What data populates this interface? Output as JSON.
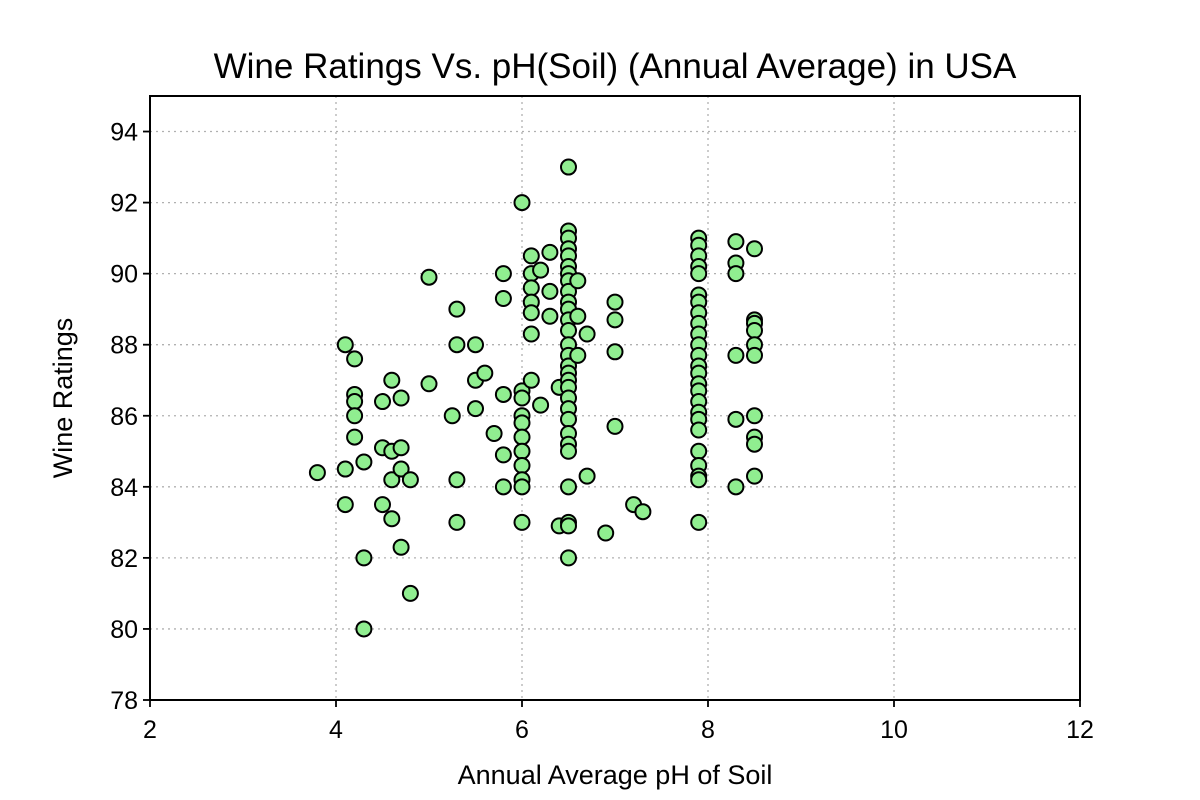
{
  "chart_data": {
    "type": "scatter",
    "title": "Wine Ratings Vs. pH(Soil) (Annual Average) in USA",
    "xlabel": "Annual Average pH of Soil",
    "ylabel": "Wine Ratings",
    "xlim": [
      2,
      12
    ],
    "ylim": [
      78,
      95
    ],
    "xticks": [
      "2",
      "4",
      "6",
      "8",
      "10",
      "12"
    ],
    "yticks": [
      "78",
      "80",
      "82",
      "84",
      "86",
      "88",
      "90",
      "92",
      "94"
    ],
    "grid": true,
    "legend": "none",
    "marker_color": "#90ee90",
    "marker_edge_color": "#000000",
    "points": [
      {
        "x": 3.8,
        "y": 84.4
      },
      {
        "x": 4.1,
        "y": 88.0
      },
      {
        "x": 4.1,
        "y": 84.5
      },
      {
        "x": 4.1,
        "y": 83.5
      },
      {
        "x": 4.2,
        "y": 87.6
      },
      {
        "x": 4.2,
        "y": 86.6
      },
      {
        "x": 4.2,
        "y": 86.4
      },
      {
        "x": 4.2,
        "y": 86.0
      },
      {
        "x": 4.2,
        "y": 85.4
      },
      {
        "x": 4.3,
        "y": 84.7
      },
      {
        "x": 4.3,
        "y": 82.0
      },
      {
        "x": 4.3,
        "y": 80.0
      },
      {
        "x": 4.5,
        "y": 86.4
      },
      {
        "x": 4.5,
        "y": 85.1
      },
      {
        "x": 4.5,
        "y": 83.5
      },
      {
        "x": 4.6,
        "y": 87.0
      },
      {
        "x": 4.6,
        "y": 85.0
      },
      {
        "x": 4.6,
        "y": 84.2
      },
      {
        "x": 4.6,
        "y": 83.1
      },
      {
        "x": 4.7,
        "y": 86.5
      },
      {
        "x": 4.7,
        "y": 85.1
      },
      {
        "x": 4.7,
        "y": 84.5
      },
      {
        "x": 4.7,
        "y": 82.3
      },
      {
        "x": 4.8,
        "y": 84.2
      },
      {
        "x": 4.8,
        "y": 81.0
      },
      {
        "x": 5.0,
        "y": 89.9
      },
      {
        "x": 5.0,
        "y": 86.9
      },
      {
        "x": 5.3,
        "y": 89.0
      },
      {
        "x": 5.3,
        "y": 88.0
      },
      {
        "x": 5.25,
        "y": 86.0
      },
      {
        "x": 5.3,
        "y": 84.2
      },
      {
        "x": 5.3,
        "y": 83.0
      },
      {
        "x": 5.5,
        "y": 88.0
      },
      {
        "x": 5.5,
        "y": 87.0
      },
      {
        "x": 5.5,
        "y": 86.2
      },
      {
        "x": 5.6,
        "y": 87.2
      },
      {
        "x": 5.7,
        "y": 85.5
      },
      {
        "x": 5.8,
        "y": 90.0
      },
      {
        "x": 5.8,
        "y": 89.3
      },
      {
        "x": 5.8,
        "y": 86.6
      },
      {
        "x": 5.8,
        "y": 84.9
      },
      {
        "x": 5.8,
        "y": 84.0
      },
      {
        "x": 6.0,
        "y": 92.0
      },
      {
        "x": 6.0,
        "y": 86.7
      },
      {
        "x": 6.0,
        "y": 86.5
      },
      {
        "x": 6.0,
        "y": 86.0
      },
      {
        "x": 6.0,
        "y": 85.8
      },
      {
        "x": 6.0,
        "y": 85.4
      },
      {
        "x": 6.0,
        "y": 85.0
      },
      {
        "x": 6.0,
        "y": 84.6
      },
      {
        "x": 6.0,
        "y": 84.2
      },
      {
        "x": 6.0,
        "y": 84.0
      },
      {
        "x": 6.0,
        "y": 83.0
      },
      {
        "x": 6.1,
        "y": 90.5
      },
      {
        "x": 6.1,
        "y": 90.0
      },
      {
        "x": 6.1,
        "y": 89.6
      },
      {
        "x": 6.1,
        "y": 89.2
      },
      {
        "x": 6.1,
        "y": 88.9
      },
      {
        "x": 6.1,
        "y": 88.3
      },
      {
        "x": 6.1,
        "y": 87.0
      },
      {
        "x": 6.2,
        "y": 90.1
      },
      {
        "x": 6.2,
        "y": 86.3
      },
      {
        "x": 6.3,
        "y": 90.6
      },
      {
        "x": 6.3,
        "y": 89.5
      },
      {
        "x": 6.3,
        "y": 88.8
      },
      {
        "x": 6.4,
        "y": 86.8
      },
      {
        "x": 6.4,
        "y": 82.9
      },
      {
        "x": 6.5,
        "y": 93.0
      },
      {
        "x": 6.5,
        "y": 91.2
      },
      {
        "x": 6.5,
        "y": 91.0
      },
      {
        "x": 6.5,
        "y": 90.7
      },
      {
        "x": 6.5,
        "y": 90.5
      },
      {
        "x": 6.5,
        "y": 90.2
      },
      {
        "x": 6.5,
        "y": 90.0
      },
      {
        "x": 6.5,
        "y": 89.8
      },
      {
        "x": 6.5,
        "y": 89.5
      },
      {
        "x": 6.5,
        "y": 89.2
      },
      {
        "x": 6.5,
        "y": 89.0
      },
      {
        "x": 6.5,
        "y": 88.7
      },
      {
        "x": 6.5,
        "y": 88.4
      },
      {
        "x": 6.5,
        "y": 88.0
      },
      {
        "x": 6.5,
        "y": 87.7
      },
      {
        "x": 6.5,
        "y": 87.4
      },
      {
        "x": 6.5,
        "y": 87.2
      },
      {
        "x": 6.5,
        "y": 87.0
      },
      {
        "x": 6.5,
        "y": 86.8
      },
      {
        "x": 6.5,
        "y": 86.5
      },
      {
        "x": 6.5,
        "y": 86.2
      },
      {
        "x": 6.5,
        "y": 85.9
      },
      {
        "x": 6.5,
        "y": 85.5
      },
      {
        "x": 6.5,
        "y": 85.2
      },
      {
        "x": 6.5,
        "y": 85.0
      },
      {
        "x": 6.5,
        "y": 84.0
      },
      {
        "x": 6.5,
        "y": 83.0
      },
      {
        "x": 6.5,
        "y": 82.9
      },
      {
        "x": 6.5,
        "y": 82.0
      },
      {
        "x": 6.6,
        "y": 89.8
      },
      {
        "x": 6.6,
        "y": 88.8
      },
      {
        "x": 6.6,
        "y": 87.7
      },
      {
        "x": 6.7,
        "y": 88.3
      },
      {
        "x": 6.7,
        "y": 84.3
      },
      {
        "x": 6.9,
        "y": 82.7
      },
      {
        "x": 7.0,
        "y": 89.2
      },
      {
        "x": 7.0,
        "y": 88.7
      },
      {
        "x": 7.0,
        "y": 87.8
      },
      {
        "x": 7.0,
        "y": 85.7
      },
      {
        "x": 7.2,
        "y": 83.5
      },
      {
        "x": 7.3,
        "y": 83.3
      },
      {
        "x": 7.9,
        "y": 91.0
      },
      {
        "x": 7.9,
        "y": 90.8
      },
      {
        "x": 7.9,
        "y": 90.5
      },
      {
        "x": 7.9,
        "y": 90.2
      },
      {
        "x": 7.9,
        "y": 90.0
      },
      {
        "x": 7.9,
        "y": 89.4
      },
      {
        "x": 7.9,
        "y": 89.2
      },
      {
        "x": 7.9,
        "y": 88.9
      },
      {
        "x": 7.9,
        "y": 88.6
      },
      {
        "x": 7.9,
        "y": 88.3
      },
      {
        "x": 7.9,
        "y": 88.0
      },
      {
        "x": 7.9,
        "y": 87.7
      },
      {
        "x": 7.9,
        "y": 87.4
      },
      {
        "x": 7.9,
        "y": 87.2
      },
      {
        "x": 7.9,
        "y": 86.9
      },
      {
        "x": 7.9,
        "y": 86.7
      },
      {
        "x": 7.9,
        "y": 86.4
      },
      {
        "x": 7.9,
        "y": 86.1
      },
      {
        "x": 7.9,
        "y": 85.9
      },
      {
        "x": 7.9,
        "y": 85.6
      },
      {
        "x": 7.9,
        "y": 85.0
      },
      {
        "x": 7.9,
        "y": 84.6
      },
      {
        "x": 7.9,
        "y": 84.3
      },
      {
        "x": 7.9,
        "y": 84.2
      },
      {
        "x": 7.9,
        "y": 83.0
      },
      {
        "x": 8.3,
        "y": 90.9
      },
      {
        "x": 8.3,
        "y": 90.3
      },
      {
        "x": 8.3,
        "y": 90.0
      },
      {
        "x": 8.3,
        "y": 87.7
      },
      {
        "x": 8.3,
        "y": 85.9
      },
      {
        "x": 8.3,
        "y": 84.0
      },
      {
        "x": 8.5,
        "y": 90.7
      },
      {
        "x": 8.5,
        "y": 88.7
      },
      {
        "x": 8.5,
        "y": 88.6
      },
      {
        "x": 8.5,
        "y": 88.4
      },
      {
        "x": 8.5,
        "y": 88.0
      },
      {
        "x": 8.5,
        "y": 87.7
      },
      {
        "x": 8.5,
        "y": 86.0
      },
      {
        "x": 8.5,
        "y": 85.4
      },
      {
        "x": 8.5,
        "y": 85.2
      },
      {
        "x": 8.5,
        "y": 84.3
      }
    ]
  }
}
